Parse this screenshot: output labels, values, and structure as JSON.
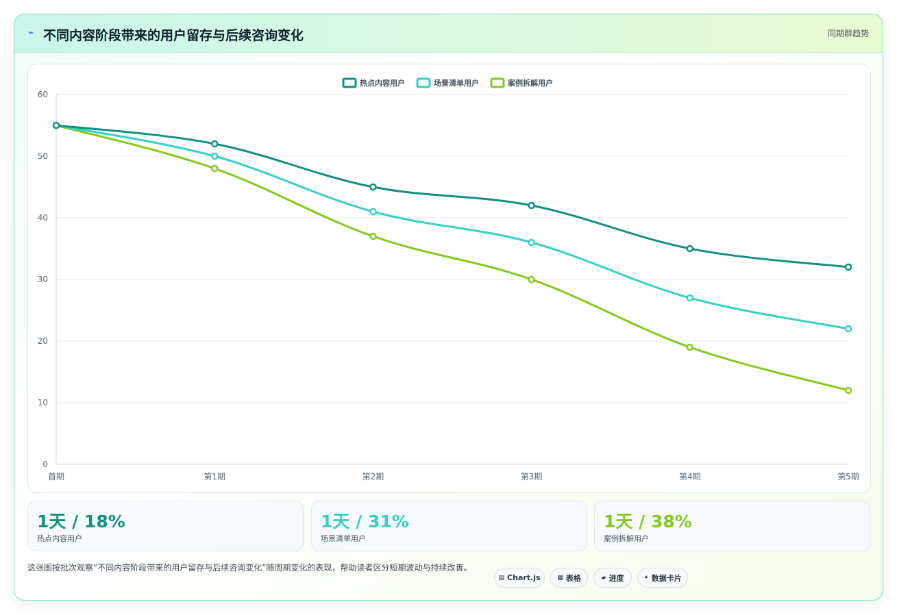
{
  "header": {
    "title_icon": "⌁",
    "title": "不同内容阶段带来的用户留存与后续咨询变化",
    "subtitle": "同期群趋势"
  },
  "chart_data": {
    "type": "line",
    "categories": [
      "首期",
      "第1期",
      "第2期",
      "第3期",
      "第4期",
      "第5期"
    ],
    "ylim": [
      0,
      60
    ],
    "yticks": [
      0,
      10,
      20,
      30,
      40,
      50,
      60
    ],
    "grid": true,
    "legend_position": "top-center",
    "series": [
      {
        "name": "热点内容用户",
        "color": "#138f80",
        "values": [
          55,
          52,
          45,
          42,
          35,
          32
        ]
      },
      {
        "name": "场景清单用户",
        "color": "#36d1c4",
        "values": [
          55,
          50,
          41,
          36,
          27,
          22
        ]
      },
      {
        "name": "案例拆解用户",
        "color": "#84c91c",
        "values": [
          55,
          48,
          37,
          30,
          19,
          12
        ]
      }
    ]
  },
  "stats": [
    {
      "value": "1天 / 18%",
      "label": "热点内容用户",
      "color": "#138f80"
    },
    {
      "value": "1天 / 31%",
      "label": "场景清单用户",
      "color": "#36d1c4"
    },
    {
      "value": "1天 / 38%",
      "label": "案例拆解用户",
      "color": "#84c91c"
    }
  ],
  "footnote": "这张图按批次观察“不同内容阶段带来的用户留存与后续咨询变化”随周期变化的表现，帮助读者区分短期波动与持续改善。",
  "tags": [
    {
      "icon": "▤",
      "label": "Chart.js"
    },
    {
      "icon": "▦",
      "label": "表格"
    },
    {
      "icon": "▰",
      "label": "进度"
    },
    {
      "icon": "✦",
      "label": "数据卡片"
    }
  ]
}
